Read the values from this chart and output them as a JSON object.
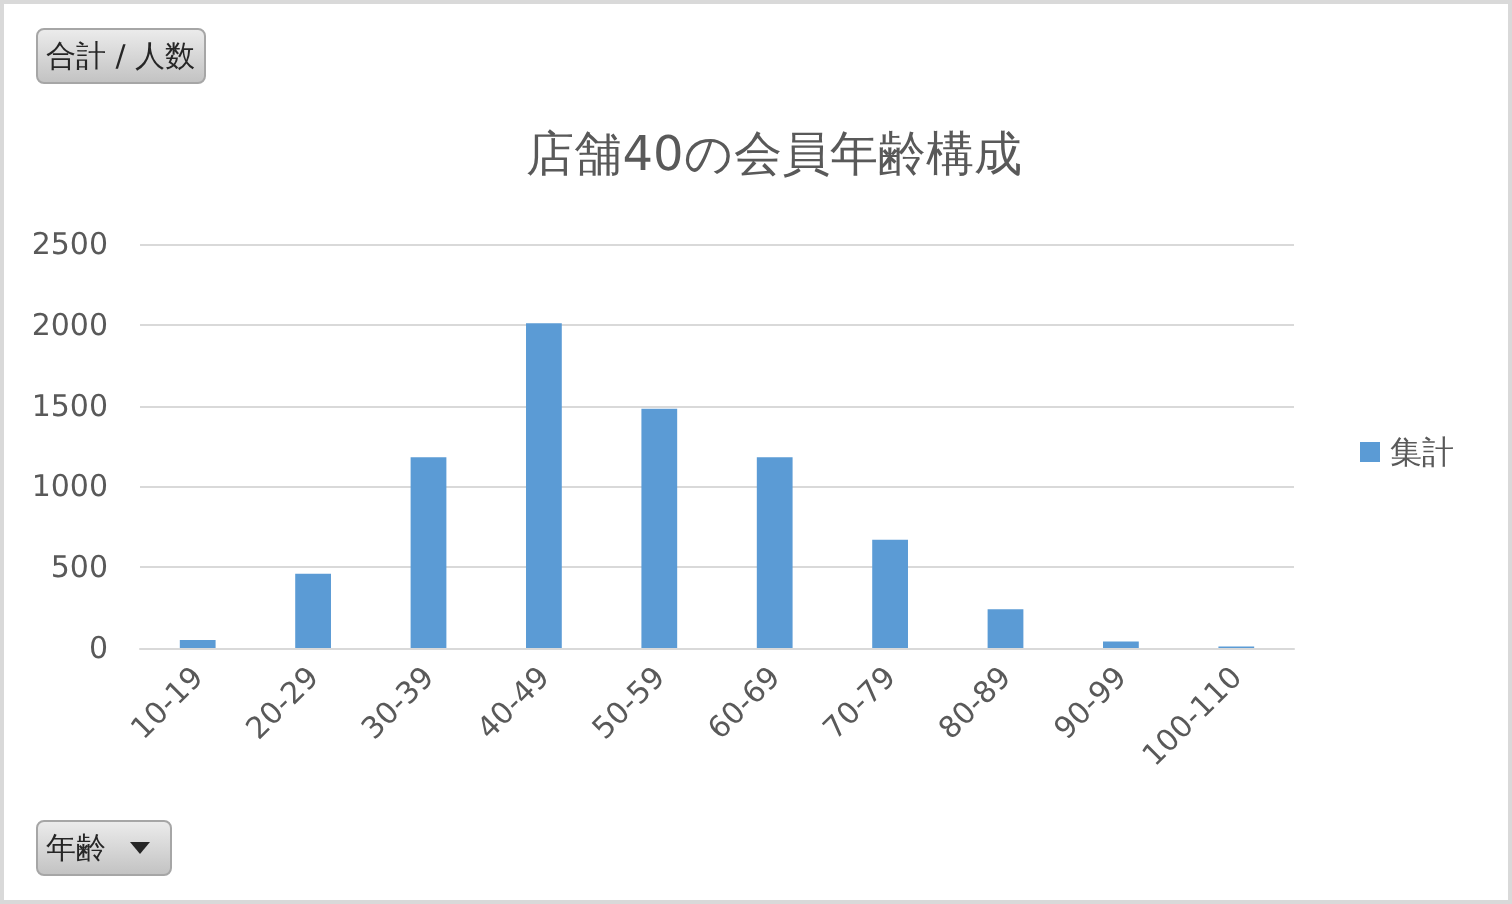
{
  "chart_data": {
    "type": "bar",
    "title": "店舗40の会員年齢構成",
    "xlabel": "年齢",
    "annotations": [
      "合計 / 人数"
    ],
    "categories": [
      "10-19",
      "20-29",
      "30-39",
      "40-49",
      "50-59",
      "60-69",
      "70-79",
      "80-89",
      "90-99",
      "100-110"
    ],
    "series": [
      {
        "name": "集計",
        "color": "#5b9bd5",
        "values": [
          50,
          460,
          1180,
          2010,
          1480,
          1180,
          670,
          240,
          40,
          10
        ]
      }
    ],
    "ylim": [
      0,
      2500
    ],
    "yticks": [
      0,
      500,
      1000,
      1500,
      2000,
      2500
    ],
    "grid": "y",
    "legend": "right"
  }
}
